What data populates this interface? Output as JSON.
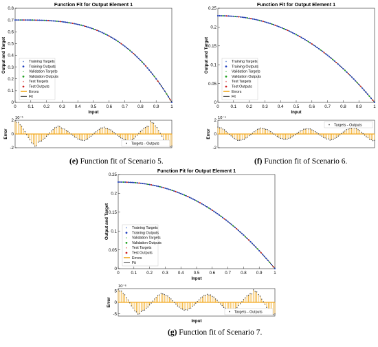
{
  "colors": {
    "fit": "#1a1a1a",
    "train_target": "#6f8fd8",
    "train_output": "#1f3fbf",
    "val_target": "#7fd07f",
    "val_output": "#1ea01e",
    "test_target": "#e87a7a",
    "test_output": "#d01f1f",
    "errors": "#f2a81d",
    "error_marker": "#3b3b3b"
  },
  "chart_data": [
    {
      "id": "s5",
      "type": "line",
      "title": "Function Fit for Output Element 1",
      "xlabel": "Input",
      "ylabel": "Output and Target",
      "xlim": [
        0,
        1
      ],
      "ylim": [
        0,
        0.8
      ],
      "xticks": [
        "0",
        "0.1",
        "0.2",
        "0.3",
        "0.4",
        "0.5",
        "0.6",
        "0.7",
        "0.8",
        "0.9",
        "1"
      ],
      "yticks": [
        "0",
        "0.1",
        "0.2",
        "0.3",
        "0.4",
        "0.5",
        "0.6",
        "0.7",
        "0.8"
      ],
      "fit_model": {
        "a": 0.7,
        "p": 3.2
      },
      "legend_placement": "bottom-left",
      "legend": [
        "Training Targets",
        "Training Outputs",
        "Validation Targets",
        "Validation Outputs",
        "Test Targets",
        "Test Outputs",
        "Errors",
        "Fit"
      ],
      "error": {
        "ylabel": "Error",
        "xlabel": "",
        "exponent": "10⁻⁵",
        "yticks": [
          "2",
          "0",
          "-2"
        ],
        "ylim": [
          -2,
          2
        ],
        "amplitudes": [
          1.9,
          1.2,
          0.9,
          1.0,
          0.9,
          1.2,
          1.9
        ],
        "legend_placement": "bottom-right",
        "legend": "Targets - Outputs"
      },
      "caption_bold": "(e)",
      "caption_rest": " Function fit of Scenario 5."
    },
    {
      "id": "s6",
      "type": "line",
      "title": "Function Fit for Output Element 1",
      "xlabel": "Input",
      "ylabel": "Output and Target",
      "xlim": [
        0,
        1
      ],
      "ylim": [
        0,
        0.25
      ],
      "xticks": [
        "0",
        "0.1",
        "0.2",
        "0.3",
        "0.4",
        "0.5",
        "0.6",
        "0.7",
        "0.8",
        "0.9",
        "1"
      ],
      "yticks": [
        "0",
        "0.05",
        "0.1",
        "0.15",
        "0.2",
        "0.25"
      ],
      "fit_model": {
        "a": 0.23,
        "p": 2.2
      },
      "legend_placement": "bottom-left",
      "legend": [
        "Training Targets",
        "Training Outputs",
        "Validation Targets",
        "Validation Outputs",
        "Test Targets",
        "Test Outputs",
        "Errors",
        "Fit"
      ],
      "error": {
        "ylabel": "Error",
        "xlabel": "",
        "exponent": "10⁻⁴",
        "yticks": [
          "2",
          "0",
          "-2"
        ],
        "ylim": [
          -2,
          2
        ],
        "amplitudes": [
          1.0,
          0.9,
          0.8,
          0.8,
          0.8,
          0.9,
          1.0
        ],
        "legend_placement": "top-right",
        "legend": "Targets - Outputs"
      },
      "caption_bold": "(f)",
      "caption_rest": " Function fit of Scenario 6."
    },
    {
      "id": "s7",
      "type": "line",
      "title": "Function Fit for Output Element 1",
      "xlabel": "Input",
      "ylabel": "Output and Target",
      "xlim": [
        0,
        1
      ],
      "ylim": [
        0,
        0.25
      ],
      "xticks": [
        "0",
        "0.1",
        "0.2",
        "0.3",
        "0.4",
        "0.5",
        "0.6",
        "0.7",
        "0.8",
        "0.9",
        "1"
      ],
      "yticks": [
        "0",
        "0.05",
        "0.1",
        "0.15",
        "0.2",
        "0.25"
      ],
      "fit_model": {
        "a": 0.23,
        "p": 2.2
      },
      "legend_placement": "bottom-left",
      "legend": [
        "Training Targets",
        "Training Outputs",
        "Validation Targets",
        "Validation Outputs",
        "Test Targets",
        "Test Outputs",
        "Errors",
        "Fit"
      ],
      "error": {
        "ylabel": "Error",
        "xlabel": "Input",
        "exponent": "10⁻⁶",
        "yticks": [
          "5",
          "0",
          "-5"
        ],
        "ylim": [
          -6,
          6
        ],
        "amplitudes": [
          5.5,
          4.0,
          3.5,
          3.5,
          3.5,
          4.0,
          5.5
        ],
        "legend_placement": "bottom-right",
        "legend": "Targets - Outputs"
      },
      "caption_bold": "(g)",
      "caption_rest": " Function fit of Scenario 7."
    }
  ]
}
